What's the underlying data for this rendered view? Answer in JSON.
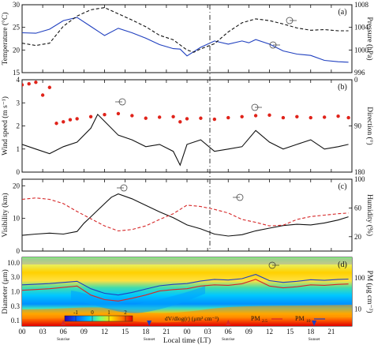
{
  "figure": {
    "x_axis": {
      "label": "Local time (LT)",
      "ticks": [
        "00",
        "03",
        "06",
        "09",
        "12",
        "15",
        "18",
        "21",
        "00",
        "03",
        "06",
        "09",
        "12",
        "15",
        "18",
        "21"
      ],
      "markers": [
        {
          "label": "Sunrise",
          "color": "#d62728",
          "hour": 6
        },
        {
          "label": "Sunset",
          "color": "#1f3fbf",
          "hour": 18.5
        },
        {
          "label": "Sunrise",
          "color": "#d62728",
          "hour": 30
        },
        {
          "label": "Sunset",
          "color": "#1f3fbf",
          "hour": 42.5
        }
      ]
    },
    "legend": {
      "pm25": "PM",
      "pm25_sub": "2.5",
      "pm10": "PM",
      "pm10_sub": "10"
    }
  },
  "chart_data": [
    {
      "type": "line",
      "panel_label": "(a)",
      "ylabel_left": "Temperature (°C)",
      "ylabel_right": "Pressure (hPa)",
      "yticks_left": [
        "15",
        "20",
        "25",
        "30"
      ],
      "yticks_right": [
        "996",
        "1000",
        "1004",
        "1008"
      ],
      "ylim_left": [
        15,
        30
      ],
      "ylim_right": [
        996,
        1008
      ],
      "series": [
        {
          "axis": "left",
          "style": "solid",
          "color": "#1f3fbf",
          "x": [
            0,
            2,
            4,
            6,
            8,
            10,
            12,
            14,
            16,
            18,
            20,
            22,
            23,
            24,
            26,
            28,
            30,
            32,
            33,
            34,
            36,
            38,
            40,
            42,
            44,
            46,
            47.5
          ],
          "values": [
            23.8,
            23.7,
            24.6,
            26.5,
            27.2,
            25.2,
            23.2,
            24.8,
            23.8,
            22.6,
            21.2,
            20.3,
            20.2,
            18.7,
            20.6,
            22.0,
            21.3,
            22.0,
            21.6,
            22.3,
            21.3,
            19.8,
            19.1,
            18.8,
            17.7,
            17.4,
            17.3
          ]
        },
        {
          "axis": "right",
          "style": "dashed",
          "color": "#111111",
          "x": [
            0,
            2,
            4,
            6,
            8,
            10,
            12,
            14,
            16,
            18,
            20,
            22,
            24,
            25,
            26,
            28,
            30,
            32,
            34,
            36,
            38,
            40,
            42,
            44,
            46,
            47.5
          ],
          "values": [
            1001.2,
            1000.8,
            1001.2,
            1004.2,
            1006.0,
            1007.1,
            1007.5,
            1006.4,
            1005.3,
            1004.1,
            1002.6,
            1001.8,
            1000.0,
            999.6,
            1000.2,
            1001.1,
            1003.2,
            1004.8,
            1005.5,
            1005.2,
            1004.6,
            1003.9,
            1003.5,
            1003.6,
            1003.4,
            1003.4
          ]
        }
      ]
    },
    {
      "type": "line",
      "panel_label": "(b)",
      "ylabel_left": "Wind speed (m s⁻¹)",
      "ylabel_right": "Direction (°)",
      "yticks_left": [
        "0",
        "1",
        "2",
        "3",
        "4"
      ],
      "yticks_right": [
        "180",
        "90",
        "0"
      ],
      "ylim_left": [
        0,
        4
      ],
      "ylim_right": [
        180,
        0
      ],
      "series": [
        {
          "axis": "left",
          "style": "solid",
          "color": "#111111",
          "x": [
            0,
            2,
            4,
            6,
            8,
            10,
            11,
            12,
            14,
            16,
            18,
            20,
            22,
            23,
            24,
            26,
            28,
            30,
            32,
            34,
            36,
            38,
            40,
            42,
            44,
            46,
            47.5
          ],
          "values": [
            1.2,
            1.0,
            0.8,
            1.1,
            1.3,
            1.9,
            2.5,
            2.2,
            1.6,
            1.4,
            1.1,
            1.2,
            0.9,
            0.3,
            1.2,
            1.4,
            0.9,
            1.0,
            1.1,
            1.8,
            1.3,
            1.0,
            1.2,
            1.4,
            1.0,
            1.1,
            1.2
          ]
        },
        {
          "axis": "right",
          "style": "points",
          "color": "#e0231a",
          "x": [
            0,
            1,
            2,
            3,
            4,
            5,
            6,
            7,
            8,
            10,
            12,
            14,
            16,
            18,
            20,
            22,
            23,
            24,
            26,
            28,
            30,
            32,
            34,
            36,
            38,
            40,
            42,
            44,
            46,
            47.5
          ],
          "values": [
            10,
            8,
            5,
            30,
            15,
            85,
            82,
            78,
            76,
            72,
            68,
            66,
            70,
            75,
            73,
            72,
            82,
            76,
            75,
            77,
            74,
            72,
            70,
            69,
            74,
            72,
            74,
            73,
            71,
            74
          ]
        }
      ]
    },
    {
      "type": "line",
      "panel_label": "(c)",
      "ylabel_left": "Visibility (km)",
      "ylabel_right": "Humidity (%)",
      "yticks_left": [
        "0",
        "10",
        "20"
      ],
      "yticks_right": [
        "20",
        "60",
        "100"
      ],
      "ylim_left": [
        0,
        22
      ],
      "ylim_right": [
        0,
        100
      ],
      "series": [
        {
          "axis": "left",
          "style": "solid",
          "color": "#111111",
          "x": [
            0,
            2,
            4,
            6,
            8,
            9,
            10,
            12,
            13,
            14,
            16,
            18,
            20,
            22,
            24,
            26,
            28,
            30,
            32,
            34,
            36,
            38,
            40,
            42,
            44,
            46,
            47.5
          ],
          "values": [
            4.8,
            5.2,
            5.5,
            5.2,
            6.0,
            8.5,
            10.5,
            14.5,
            16.5,
            17.5,
            16.0,
            14.0,
            12.0,
            10.2,
            8.0,
            6.8,
            5.2,
            4.6,
            5.0,
            6.2,
            7.0,
            7.8,
            8.2,
            8.0,
            8.6,
            9.5,
            10.5
          ]
        },
        {
          "axis": "right",
          "style": "dashed",
          "color": "#d62728",
          "x": [
            0,
            2,
            4,
            6,
            8,
            10,
            12,
            14,
            16,
            18,
            20,
            22,
            24,
            26,
            28,
            30,
            32,
            34,
            36,
            38,
            40,
            42,
            44,
            46,
            47.5
          ],
          "values": [
            72,
            74,
            72,
            66,
            55,
            45,
            35,
            28,
            30,
            35,
            44,
            52,
            64,
            62,
            58,
            53,
            44,
            40,
            35,
            36,
            44,
            48,
            50,
            52,
            53
          ]
        }
      ]
    },
    {
      "type": "heatmap",
      "panel_label": "(d)",
      "ylabel_left": "Diameter (μm)",
      "ylabel_right": "PM (μg cm⁻³)",
      "yticks_left": [
        "0.1",
        "0.3",
        "1.0",
        "3.0",
        "10.0"
      ],
      "yticks_right": [
        "10",
        "100"
      ],
      "colorbar_label": "dV/dlog(r) (μm³ cm⁻³)",
      "colorbar_ticks": [
        "-1",
        "0",
        "1",
        "2"
      ],
      "color_stops": [
        "#2c00b0",
        "#0066ff",
        "#00c8ff",
        "#77ff77",
        "#ffe000",
        "#ff7a00",
        "#e00000"
      ],
      "series": [
        {
          "name": "PM2.5",
          "color": "#d62728",
          "x": [
            0,
            4,
            8,
            10,
            12,
            14,
            16,
            18,
            20,
            22,
            24,
            26,
            28,
            30,
            32,
            34,
            36,
            38,
            40,
            42,
            44,
            46,
            47.5
          ],
          "values": [
            40,
            45,
            55,
            28,
            20,
            18,
            22,
            28,
            38,
            42,
            45,
            55,
            60,
            58,
            65,
            90,
            55,
            48,
            52,
            60,
            58,
            62,
            64
          ]
        },
        {
          "name": "PM10",
          "color": "#1f3fbf",
          "x": [
            0,
            4,
            8,
            10,
            12,
            14,
            16,
            18,
            20,
            22,
            24,
            26,
            28,
            30,
            32,
            34,
            36,
            38,
            40,
            42,
            44,
            46,
            47.5
          ],
          "values": [
            60,
            66,
            78,
            45,
            32,
            28,
            34,
            44,
            56,
            62,
            66,
            80,
            90,
            86,
            95,
            130,
            82,
            72,
            78,
            88,
            84,
            90,
            92
          ]
        }
      ]
    }
  ]
}
